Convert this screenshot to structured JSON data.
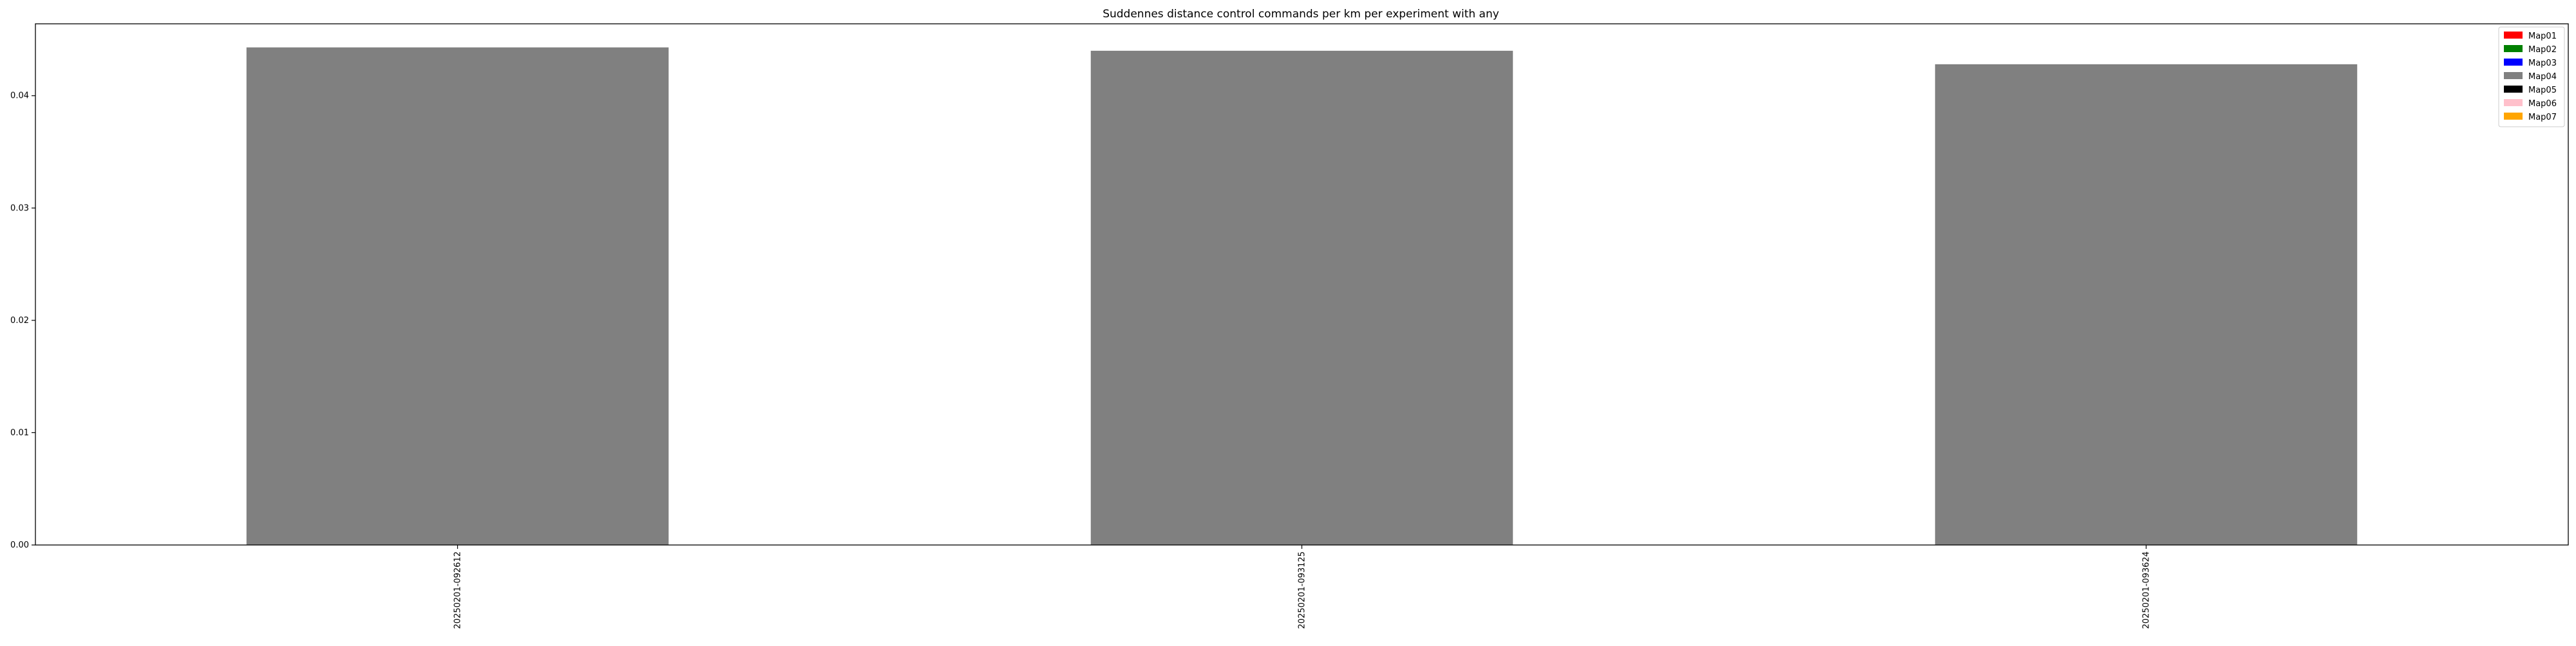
{
  "chart_data": {
    "type": "bar",
    "title": "Suddennes distance control commands per km per experiment with any",
    "xlabel": "",
    "ylabel": "",
    "categories": [
      "20250201-092612",
      "20250201-093125",
      "20250201-093624"
    ],
    "series": [
      {
        "name": "Map04",
        "color": "#808080",
        "values": [
          0.0443,
          0.044,
          0.0428
        ]
      }
    ],
    "ylim": [
      0,
      0.0464
    ],
    "yticks": [
      0.0,
      0.01,
      0.02,
      0.03,
      0.04
    ],
    "ytick_labels": [
      "0.00",
      "0.01",
      "0.02",
      "0.03",
      "0.04"
    ],
    "grid": false,
    "legend_position": "top-right",
    "legend": [
      {
        "label": "Map01",
        "color": "#ff0000"
      },
      {
        "label": "Map02",
        "color": "#008000"
      },
      {
        "label": "Map03",
        "color": "#0000ff"
      },
      {
        "label": "Map04",
        "color": "#808080"
      },
      {
        "label": "Map05",
        "color": "#000000"
      },
      {
        "label": "Map06",
        "color": "#ffc0cb"
      },
      {
        "label": "Map07",
        "color": "#ffa500"
      }
    ]
  }
}
